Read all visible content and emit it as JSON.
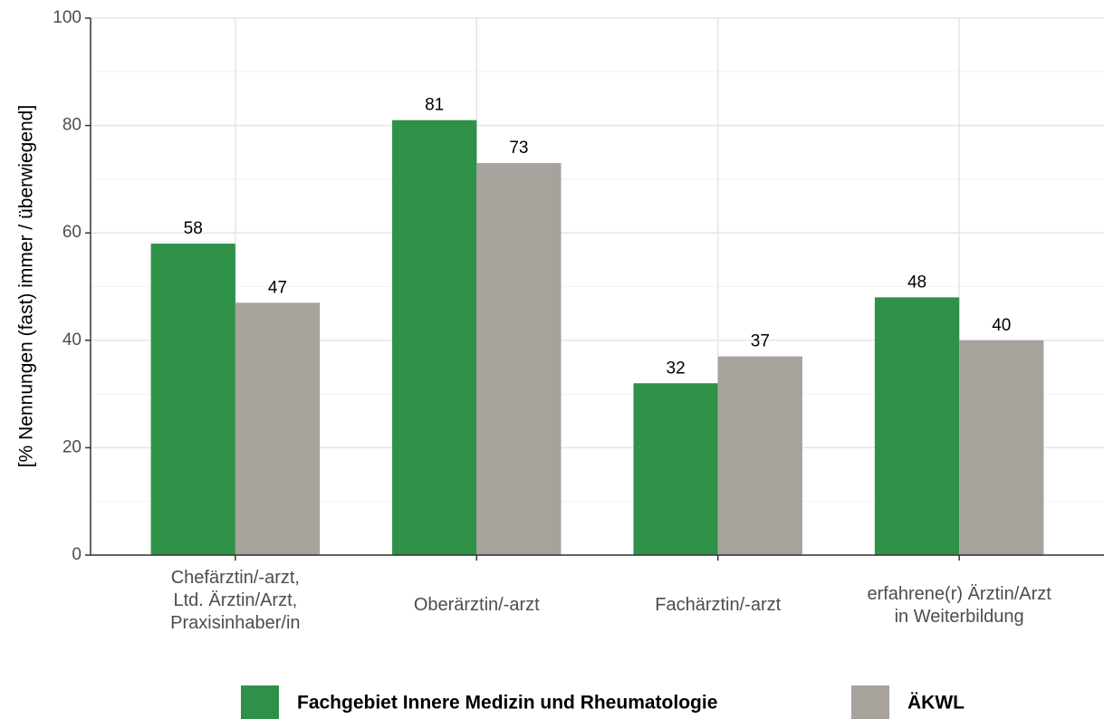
{
  "chart_data": {
    "type": "bar",
    "ylabel": "[% Nennungen (fast) immer / überwiegend]",
    "categories": [
      "Chefärztin/-arzt,\nLtd. Ärztin/Arzt,\nPraxisinhaber/in",
      "Oberärztin/-arzt",
      "Fachärztin/-arzt",
      "erfahrene(r) Ärztin/Arzt\nin Weiterbildung"
    ],
    "series": [
      {
        "name": "Fachgebiet Innere Medizin und Rheumatologie",
        "color": "#2e9147",
        "values": [
          58,
          81,
          32,
          48
        ]
      },
      {
        "name": "ÄKWL",
        "color": "#a7a39c",
        "values": [
          47,
          73,
          37,
          40
        ]
      }
    ],
    "ylim": [
      0,
      100
    ],
    "yticks": [
      0,
      20,
      40,
      60,
      80,
      100
    ],
    "grid": true,
    "legend": "bottom"
  }
}
